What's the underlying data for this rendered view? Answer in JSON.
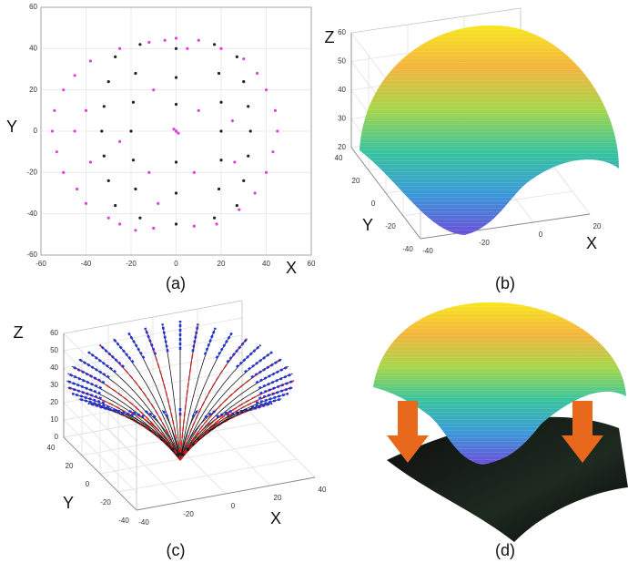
{
  "chart_data": [
    {
      "type": "scatter",
      "caption": "(a)",
      "xlabel": "X",
      "ylabel": "Y",
      "xlim": [
        -60,
        60
      ],
      "ylim": [
        -60,
        60
      ],
      "xticks": [
        -60,
        -40,
        -20,
        0,
        20,
        40,
        60
      ],
      "yticks": [
        -60,
        -40,
        -20,
        0,
        20,
        40,
        60
      ],
      "grid": true,
      "series": [
        {
          "color": "#222222",
          "x": [
            -27,
            -30,
            -32,
            -33,
            -32,
            -30,
            -27,
            -16,
            -18,
            -19,
            -20,
            -19,
            -18,
            -16,
            0,
            0,
            0,
            0,
            0,
            0,
            0,
            17,
            19,
            20,
            20,
            20,
            19,
            17,
            27,
            30,
            32,
            33,
            32,
            30,
            27
          ],
          "y": [
            36,
            24,
            12,
            0,
            -12,
            -24,
            -36,
            42,
            28,
            14,
            0,
            -14,
            -28,
            -42,
            40,
            26,
            13,
            0,
            -15,
            -30,
            -45,
            42,
            28,
            14,
            0,
            -14,
            -28,
            -42,
            36,
            24,
            12,
            0,
            -12,
            -24,
            -36
          ]
        },
        {
          "color": "#e040e0",
          "x": [
            -55,
            -54,
            -53,
            -50,
            -50,
            -45,
            -44,
            -40,
            -38,
            -30,
            -25,
            -18,
            -10,
            -5,
            0,
            5,
            10,
            20,
            30,
            36,
            40,
            44,
            45,
            43,
            40,
            35,
            28,
            18,
            8,
            -25,
            -12,
            -45,
            -40,
            -38,
            -10,
            -12,
            8,
            10,
            25,
            -25,
            0,
            -1,
            1,
            26,
            -8
          ],
          "y": [
            0,
            10,
            -10,
            20,
            -20,
            27,
            -28,
            -35,
            34,
            -42,
            -45,
            -48,
            -47,
            44,
            45,
            40,
            44,
            40,
            35,
            28,
            20,
            10,
            0,
            -10,
            -20,
            -30,
            -38,
            -45,
            -46,
            40,
            43,
            0,
            10,
            -15,
            20,
            -20,
            -20,
            10,
            5,
            -5,
            0,
            1,
            -1,
            -15,
            -35
          ]
        }
      ]
    },
    {
      "type": "surface",
      "caption": "(b)",
      "xlabel": "X",
      "ylabel": "Y",
      "zlabel": "Z",
      "xlim": [
        -40,
        20
      ],
      "ylim": [
        -40,
        40
      ],
      "zlim": [
        20,
        60
      ],
      "xticks": [
        -40,
        -20,
        0,
        20
      ],
      "yticks": [
        -40,
        -20,
        0,
        20,
        40
      ],
      "zticks": [
        20,
        30,
        40,
        50,
        60
      ]
    },
    {
      "type": "surface",
      "caption": "(c)",
      "xlabel": "X",
      "ylabel": "Y",
      "zlabel": "Z",
      "xlim": [
        -40,
        40
      ],
      "ylim": [
        -40,
        40
      ],
      "zlim": [
        0,
        60
      ],
      "xticks": [
        -40,
        -20,
        0,
        20,
        40
      ],
      "yticks": [
        -40,
        -20,
        0,
        20,
        40
      ],
      "zticks": [
        0,
        10,
        20,
        30,
        40,
        50,
        60
      ]
    },
    {
      "type": "surface",
      "caption": "(d)"
    }
  ]
}
